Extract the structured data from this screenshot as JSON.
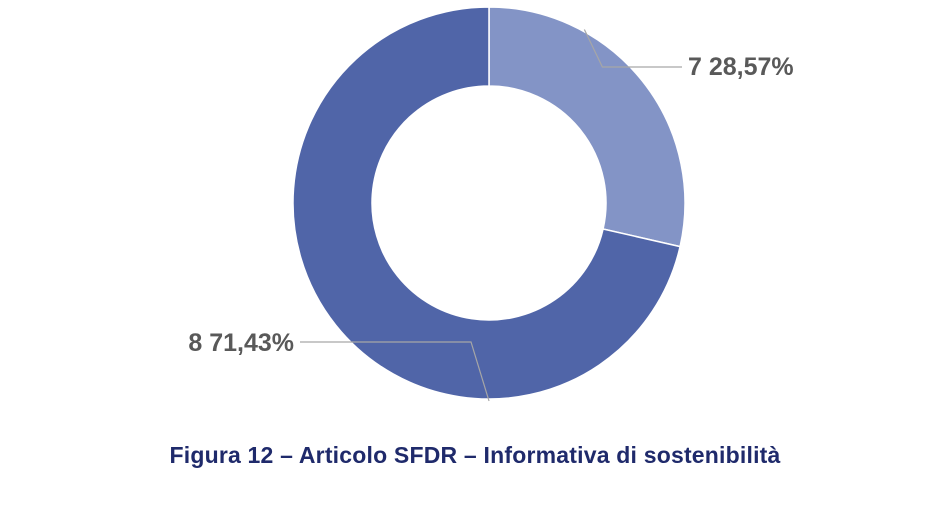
{
  "chart_data": {
    "type": "pie",
    "donut": true,
    "slices": [
      {
        "category": "7",
        "value": 28.57,
        "label": "7 28,57%",
        "color": "#8394c6"
      },
      {
        "category": "8",
        "value": 71.43,
        "label": "8 71,43%",
        "color": "#5065a8"
      }
    ],
    "label_color": "#595959",
    "leader_color": "#a6a6a6",
    "legend": "none"
  },
  "caption": {
    "text": "Figura 12 – Articolo SFDR – Informativa di sostenibilità",
    "color": "#1f2a6b"
  }
}
